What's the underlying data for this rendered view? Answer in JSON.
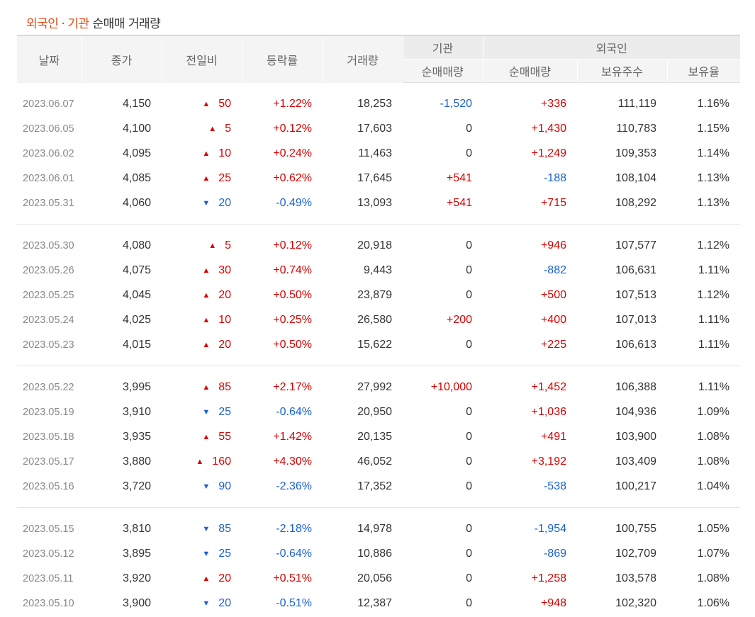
{
  "title": {
    "part1": "외국인",
    "dot": "·",
    "part2": "기관",
    "rest": "순매매 거래량"
  },
  "headers": {
    "date": "날짜",
    "close": "종가",
    "change": "전일비",
    "rate": "등락률",
    "volume": "거래량",
    "inst_group": "기관",
    "foreign_group": "외국인",
    "inst_net": "순매매량",
    "foreign_net": "순매매량",
    "holdings": "보유주수",
    "ratio": "보유율"
  },
  "colors": {
    "up": "#d60000",
    "down": "#1b61d1",
    "accent": "#e8460b"
  },
  "groups": [
    [
      {
        "date": "2023.06.07",
        "close": "4,150",
        "dir": "up",
        "change": "50",
        "rate": "+1.22%",
        "volume": "18,253",
        "inst": "-1,520",
        "foreign": "+336",
        "holdings": "111,119",
        "ratio": "1.16%"
      },
      {
        "date": "2023.06.05",
        "close": "4,100",
        "dir": "up",
        "change": "5",
        "rate": "+0.12%",
        "volume": "17,603",
        "inst": "0",
        "foreign": "+1,430",
        "holdings": "110,783",
        "ratio": "1.15%"
      },
      {
        "date": "2023.06.02",
        "close": "4,095",
        "dir": "up",
        "change": "10",
        "rate": "+0.24%",
        "volume": "11,463",
        "inst": "0",
        "foreign": "+1,249",
        "holdings": "109,353",
        "ratio": "1.14%"
      },
      {
        "date": "2023.06.01",
        "close": "4,085",
        "dir": "up",
        "change": "25",
        "rate": "+0.62%",
        "volume": "17,645",
        "inst": "+541",
        "foreign": "-188",
        "holdings": "108,104",
        "ratio": "1.13%"
      },
      {
        "date": "2023.05.31",
        "close": "4,060",
        "dir": "dn",
        "change": "20",
        "rate": "-0.49%",
        "volume": "13,093",
        "inst": "+541",
        "foreign": "+715",
        "holdings": "108,292",
        "ratio": "1.13%"
      }
    ],
    [
      {
        "date": "2023.05.30",
        "close": "4,080",
        "dir": "up",
        "change": "5",
        "rate": "+0.12%",
        "volume": "20,918",
        "inst": "0",
        "foreign": "+946",
        "holdings": "107,577",
        "ratio": "1.12%"
      },
      {
        "date": "2023.05.26",
        "close": "4,075",
        "dir": "up",
        "change": "30",
        "rate": "+0.74%",
        "volume": "9,443",
        "inst": "0",
        "foreign": "-882",
        "holdings": "106,631",
        "ratio": "1.11%"
      },
      {
        "date": "2023.05.25",
        "close": "4,045",
        "dir": "up",
        "change": "20",
        "rate": "+0.50%",
        "volume": "23,879",
        "inst": "0",
        "foreign": "+500",
        "holdings": "107,513",
        "ratio": "1.12%"
      },
      {
        "date": "2023.05.24",
        "close": "4,025",
        "dir": "up",
        "change": "10",
        "rate": "+0.25%",
        "volume": "26,580",
        "inst": "+200",
        "foreign": "+400",
        "holdings": "107,013",
        "ratio": "1.11%"
      },
      {
        "date": "2023.05.23",
        "close": "4,015",
        "dir": "up",
        "change": "20",
        "rate": "+0.50%",
        "volume": "15,622",
        "inst": "0",
        "foreign": "+225",
        "holdings": "106,613",
        "ratio": "1.11%"
      }
    ],
    [
      {
        "date": "2023.05.22",
        "close": "3,995",
        "dir": "up",
        "change": "85",
        "rate": "+2.17%",
        "volume": "27,992",
        "inst": "+10,000",
        "foreign": "+1,452",
        "holdings": "106,388",
        "ratio": "1.11%"
      },
      {
        "date": "2023.05.19",
        "close": "3,910",
        "dir": "dn",
        "change": "25",
        "rate": "-0.64%",
        "volume": "20,950",
        "inst": "0",
        "foreign": "+1,036",
        "holdings": "104,936",
        "ratio": "1.09%"
      },
      {
        "date": "2023.05.18",
        "close": "3,935",
        "dir": "up",
        "change": "55",
        "rate": "+1.42%",
        "volume": "20,135",
        "inst": "0",
        "foreign": "+491",
        "holdings": "103,900",
        "ratio": "1.08%"
      },
      {
        "date": "2023.05.17",
        "close": "3,880",
        "dir": "up",
        "change": "160",
        "rate": "+4.30%",
        "volume": "46,052",
        "inst": "0",
        "foreign": "+3,192",
        "holdings": "103,409",
        "ratio": "1.08%"
      },
      {
        "date": "2023.05.16",
        "close": "3,720",
        "dir": "dn",
        "change": "90",
        "rate": "-2.36%",
        "volume": "17,352",
        "inst": "0",
        "foreign": "-538",
        "holdings": "100,217",
        "ratio": "1.04%"
      }
    ],
    [
      {
        "date": "2023.05.15",
        "close": "3,810",
        "dir": "dn",
        "change": "85",
        "rate": "-2.18%",
        "volume": "14,978",
        "inst": "0",
        "foreign": "-1,954",
        "holdings": "100,755",
        "ratio": "1.05%"
      },
      {
        "date": "2023.05.12",
        "close": "3,895",
        "dir": "dn",
        "change": "25",
        "rate": "-0.64%",
        "volume": "10,886",
        "inst": "0",
        "foreign": "-869",
        "holdings": "102,709",
        "ratio": "1.07%"
      },
      {
        "date": "2023.05.11",
        "close": "3,920",
        "dir": "up",
        "change": "20",
        "rate": "+0.51%",
        "volume": "20,056",
        "inst": "0",
        "foreign": "+1,258",
        "holdings": "103,578",
        "ratio": "1.08%"
      },
      {
        "date": "2023.05.10",
        "close": "3,900",
        "dir": "dn",
        "change": "20",
        "rate": "-0.51%",
        "volume": "12,387",
        "inst": "0",
        "foreign": "+948",
        "holdings": "102,320",
        "ratio": "1.06%"
      }
    ]
  ]
}
